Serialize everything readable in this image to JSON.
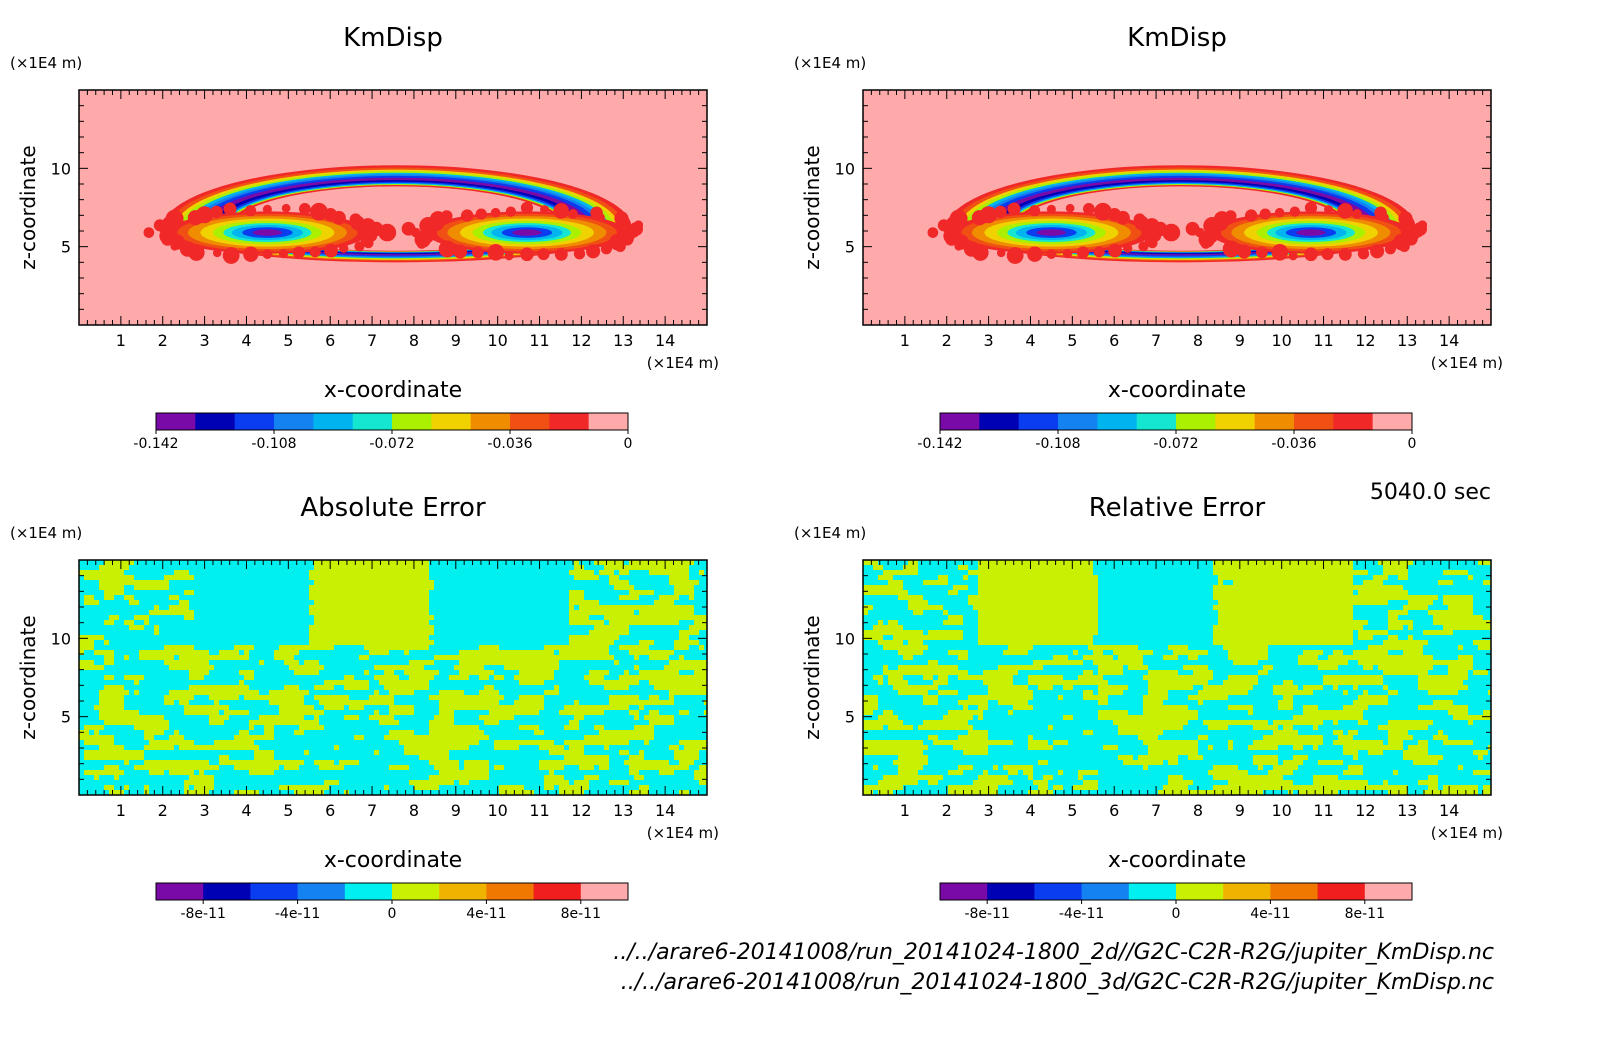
{
  "time_label": "5040.0 sec",
  "footer_lines": [
    "../../arare6-20141008/run_20141024-1800_2d//G2C-C2R-R2G/jupiter_KmDisp.nc",
    "../../arare6-20141008/run_20141024-1800_3d/G2C-C2R-R2G/jupiter_KmDisp.nc"
  ],
  "chart_data": [
    {
      "type": "heatmap",
      "title": "KmDisp",
      "xlabel": "x-coordinate",
      "ylabel": "z-coordinate",
      "x_unit": "(×1E4 m)",
      "y_unit": "(×1E4 m)",
      "xlim": [
        0,
        15
      ],
      "ylim": [
        0,
        15
      ],
      "xticks": [
        1,
        2,
        3,
        4,
        5,
        6,
        7,
        8,
        9,
        10,
        11,
        12,
        13,
        14
      ],
      "yticks": [
        5,
        10
      ],
      "pattern": "vortex",
      "colorbar": {
        "ticks": [
          "-0.142",
          "-0.108",
          "-0.072",
          "-0.036",
          "0"
        ],
        "colors": [
          "#7a0aa8",
          "#0000b4",
          "#0a3cf0",
          "#1482f0",
          "#00b4f0",
          "#14e6d2",
          "#aaf000",
          "#f0d200",
          "#f08c00",
          "#f05014",
          "#f02828",
          "#ffaaaa"
        ]
      }
    },
    {
      "type": "heatmap",
      "title": "KmDisp",
      "xlabel": "x-coordinate",
      "ylabel": "z-coordinate",
      "x_unit": "(×1E4 m)",
      "y_unit": "(×1E4 m)",
      "xlim": [
        0,
        15
      ],
      "ylim": [
        0,
        15
      ],
      "xticks": [
        1,
        2,
        3,
        4,
        5,
        6,
        7,
        8,
        9,
        10,
        11,
        12,
        13,
        14
      ],
      "yticks": [
        5,
        10
      ],
      "pattern": "vortex",
      "colorbar": {
        "ticks": [
          "-0.142",
          "-0.108",
          "-0.072",
          "-0.036",
          "0"
        ],
        "colors": [
          "#7a0aa8",
          "#0000b4",
          "#0a3cf0",
          "#1482f0",
          "#00b4f0",
          "#14e6d2",
          "#aaf000",
          "#f0d200",
          "#f08c00",
          "#f05014",
          "#f02828",
          "#ffaaaa"
        ]
      }
    },
    {
      "type": "heatmap",
      "title": "Absolute Error",
      "xlabel": "x-coordinate",
      "ylabel": "z-coordinate",
      "x_unit": "(×1E4 m)",
      "y_unit": "(×1E4 m)",
      "xlim": [
        0,
        15
      ],
      "ylim": [
        0,
        15
      ],
      "xticks": [
        1,
        2,
        3,
        4,
        5,
        6,
        7,
        8,
        9,
        10,
        11,
        12,
        13,
        14
      ],
      "yticks": [
        5,
        10
      ],
      "pattern": "noise",
      "noise_colors": [
        "#00f0f0",
        "#c8f000"
      ],
      "colorbar": {
        "ticks": [
          "-8e-11",
          "-4e-11",
          "0",
          "4e-11",
          "8e-11"
        ],
        "colors": [
          "#7a0aa8",
          "#0000b4",
          "#0a3cf0",
          "#1482f0",
          "#00f0f0",
          "#c8f000",
          "#f0b400",
          "#f07800",
          "#f01e1e",
          "#ffaaaa"
        ]
      }
    },
    {
      "type": "heatmap",
      "title": "Relative Error",
      "xlabel": "x-coordinate",
      "ylabel": "z-coordinate",
      "x_unit": "(×1E4 m)",
      "y_unit": "(×1E4 m)",
      "xlim": [
        0,
        15
      ],
      "ylim": [
        0,
        15
      ],
      "xticks": [
        1,
        2,
        3,
        4,
        5,
        6,
        7,
        8,
        9,
        10,
        11,
        12,
        13,
        14
      ],
      "yticks": [
        5,
        10
      ],
      "pattern": "noise",
      "noise_colors": [
        "#00f0f0",
        "#c8f000"
      ],
      "colorbar": {
        "ticks": [
          "-8e-11",
          "-4e-11",
          "0",
          "4e-11",
          "8e-11"
        ],
        "colors": [
          "#7a0aa8",
          "#0000b4",
          "#0a3cf0",
          "#1482f0",
          "#00f0f0",
          "#c8f000",
          "#f0b400",
          "#f07800",
          "#f01e1e",
          "#ffaaaa"
        ]
      }
    }
  ]
}
